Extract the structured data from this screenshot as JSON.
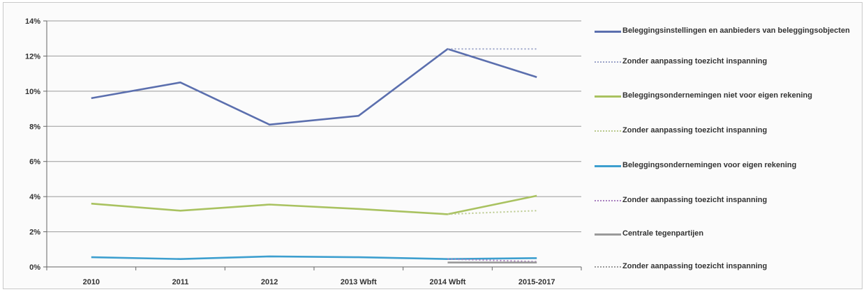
{
  "chart_data": {
    "type": "line",
    "title": "",
    "xlabel": "",
    "ylabel": "",
    "categories": [
      "2010",
      "2011",
      "2012",
      "2013 Wbft",
      "2014 Wbft",
      "2015-2017"
    ],
    "ylim": [
      0,
      14
    ],
    "ytick_labels": [
      "0%",
      "2%",
      "4%",
      "6%",
      "8%",
      "10%",
      "12%",
      "14%"
    ],
    "ytick_values": [
      0,
      2,
      4,
      6,
      8,
      10,
      12,
      14
    ],
    "grid": true,
    "legend_position": "right",
    "series": [
      {
        "name": "Beleggingsinstellingen en aanbieders van beleggingsobjecten",
        "color": "#5b6fae",
        "dash": "solid",
        "values": [
          9.6,
          10.5,
          8.1,
          8.6,
          12.4,
          10.8
        ]
      },
      {
        "name": "Zonder aanpassing toezicht inspanning",
        "color": "#9aa3c8",
        "dash": "dotted",
        "values": [
          null,
          null,
          null,
          null,
          12.4,
          12.4
        ]
      },
      {
        "name": "Beleggingsondernemingen niet voor eigen rekening",
        "color": "#a9c260",
        "dash": "solid",
        "values": [
          3.6,
          3.2,
          3.55,
          3.3,
          3.0,
          4.05
        ]
      },
      {
        "name": "Zonder aanpassing toezicht inspanning",
        "color": "#b9c98c",
        "dash": "dotted",
        "values": [
          null,
          null,
          null,
          null,
          3.0,
          3.2
        ]
      },
      {
        "name": "Beleggingsondernemingen voor eigen rekening",
        "color": "#3d9fcf",
        "dash": "solid",
        "values": [
          0.55,
          0.45,
          0.6,
          0.55,
          0.45,
          0.5
        ]
      },
      {
        "name": "Zonder aanpassing toezicht inspanning",
        "color": "#a87fbf",
        "dash": "dotted",
        "values": [
          null,
          null,
          null,
          null,
          0.45,
          0.3
        ]
      },
      {
        "name": "Centrale tegenpartijen",
        "color": "#9a9a9a",
        "dash": "solid",
        "values": [
          null,
          null,
          null,
          null,
          0.25,
          0.25
        ]
      },
      {
        "name": "Zonder aanpassing toezicht inspanning",
        "color": "#9a9a9a",
        "dash": "dotted",
        "values": [
          null,
          null,
          null,
          null,
          0.25,
          0.25
        ]
      }
    ]
  },
  "colors": {
    "grid": "#9a9a9a",
    "axis": "#666666",
    "text": "#333333"
  }
}
